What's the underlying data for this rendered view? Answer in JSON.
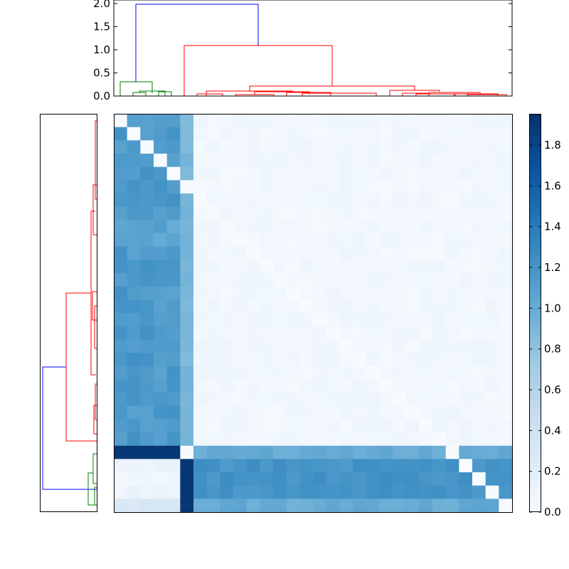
{
  "chart_data": {
    "type": "heatmap",
    "title": "",
    "description": "Clustered distance matrix with top and left dendrograms and colorbar",
    "n": 30,
    "colormap": "Blues",
    "clim": [
      0.0,
      1.95
    ],
    "colorbar": {
      "ticks": [
        0.0,
        0.2,
        0.4,
        0.6,
        0.8,
        1.0,
        1.2,
        1.4,
        1.6,
        1.8
      ],
      "tick_labels": [
        "0.0",
        "0.2",
        "0.4",
        "0.6",
        "0.8",
        "1.0",
        "1.2",
        "1.4",
        "1.6",
        "1.8"
      ]
    },
    "top_dendrogram": {
      "ylim": [
        0.0,
        2.0
      ],
      "ticks": [
        0.0,
        0.5,
        1.0,
        1.5,
        2.0
      ],
      "tick_labels": [
        "0.0",
        "0.5",
        "1.0",
        "1.5",
        "2.0"
      ],
      "root_height": 1.97,
      "clusters": [
        {
          "color": "#008000",
          "leaves": 5,
          "merge_height": 0.32
        },
        {
          "color": "#ff0000",
          "leaves": 25,
          "merge_height": 1.1
        }
      ],
      "link_color_above": "#0000ff"
    },
    "left_dendrogram": {
      "clusters": [
        {
          "color": "#ff0000",
          "position": "top",
          "leaves": 25
        },
        {
          "color": "#008000",
          "position": "bottom",
          "leaves": 5
        }
      ],
      "link_color_above": "#0000ff"
    },
    "blocks": [
      {
        "rows": "0-24",
        "cols": "0-5",
        "approx_value": 1.15
      },
      {
        "rows": "0-24",
        "cols": "6-29",
        "approx_value": 0.05
      },
      {
        "rows": "25",
        "cols": "0-4",
        "approx_value": 1.9
      },
      {
        "rows": "25",
        "cols": "6-29",
        "approx_value": 1.0
      },
      {
        "rows": "26-29",
        "cols": "0-4",
        "approx_value": 0.08
      },
      {
        "rows": "26-29",
        "cols": "5",
        "approx_value": 1.9
      },
      {
        "rows": "26-29",
        "cols": "6-29",
        "approx_value": 1.2
      }
    ]
  }
}
